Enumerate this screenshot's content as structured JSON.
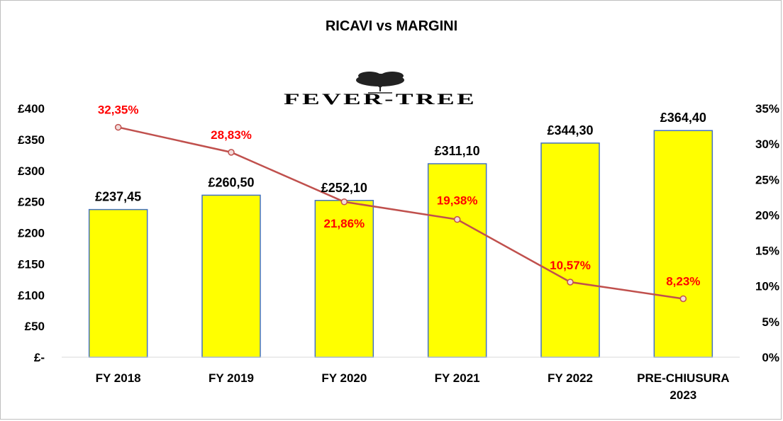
{
  "chart_data": {
    "type": "bar",
    "title": "RICAVI vs MARGINI",
    "logo_text": "FEVER-TREE",
    "categories": [
      "FY 2018",
      "FY 2019",
      "FY 2020",
      "FY 2021",
      "FY 2022",
      [
        "PRE-CHIUSURA",
        "2023"
      ]
    ],
    "series": [
      {
        "type": "bar",
        "axis": "left",
        "values": [
          237.45,
          260.5,
          252.1,
          311.1,
          344.3,
          364.4
        ],
        "labels": [
          "£237,45",
          "£260,50",
          "£252,10",
          "£311,10",
          "£344,30",
          "£364,40"
        ],
        "color": "#ffff00",
        "border_color": "#4472c4"
      },
      {
        "type": "line",
        "axis": "right",
        "values": [
          32.35,
          28.83,
          21.86,
          19.38,
          10.57,
          8.23
        ],
        "labels": [
          "32,35%",
          "28,83%",
          "21,86%",
          "19,38%",
          "10,57%",
          "8,23%"
        ],
        "color": "#c0504d",
        "label_color": "#ff0000"
      }
    ],
    "y_left": {
      "ylim": [
        0,
        400
      ],
      "ticks": [
        0,
        50,
        100,
        150,
        200,
        250,
        300,
        350,
        400
      ],
      "tick_labels": [
        "£-",
        "£50",
        "£100",
        "£150",
        "£200",
        "£250",
        "£300",
        "£350",
        "£400"
      ]
    },
    "y_right": {
      "ylim": [
        0,
        35
      ],
      "ticks": [
        0,
        5,
        10,
        15,
        20,
        25,
        30,
        35
      ],
      "tick_labels": [
        "0%",
        "5%",
        "10%",
        "15%",
        "20%",
        "25%",
        "30%",
        "35%"
      ]
    },
    "grid": false,
    "legend": "none"
  }
}
